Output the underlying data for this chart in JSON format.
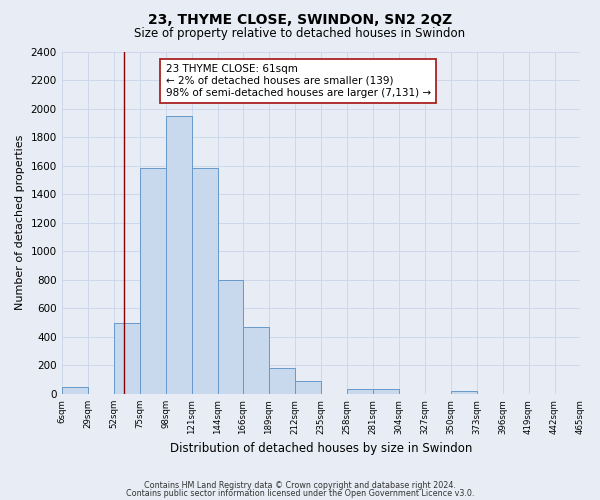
{
  "title": "23, THYME CLOSE, SWINDON, SN2 2QZ",
  "subtitle": "Size of property relative to detached houses in Swindon",
  "xlabel": "Distribution of detached houses by size in Swindon",
  "ylabel": "Number of detached properties",
  "bin_edges": [
    6,
    29,
    52,
    75,
    98,
    121,
    144,
    166,
    189,
    212,
    235,
    258,
    281,
    304,
    327,
    350,
    373,
    396,
    419,
    442,
    465
  ],
  "bar_heights": [
    50,
    0,
    500,
    1580,
    1950,
    1580,
    800,
    470,
    185,
    90,
    0,
    35,
    35,
    0,
    0,
    20,
    0,
    0,
    0,
    0
  ],
  "tick_labels": [
    "6sqm",
    "29sqm",
    "52sqm",
    "75sqm",
    "98sqm",
    "121sqm",
    "144sqm",
    "166sqm",
    "189sqm",
    "212sqm",
    "235sqm",
    "258sqm",
    "281sqm",
    "304sqm",
    "327sqm",
    "350sqm",
    "373sqm",
    "396sqm",
    "419sqm",
    "442sqm",
    "465sqm"
  ],
  "ylim": [
    0,
    2400
  ],
  "yticks": [
    0,
    200,
    400,
    600,
    800,
    1000,
    1200,
    1400,
    1600,
    1800,
    2000,
    2200,
    2400
  ],
  "bar_color": "#c8d9ee",
  "bar_edge_color": "#6699cc",
  "vline_x": 61,
  "vline_color": "#8b0000",
  "annotation_line1": "23 THYME CLOSE: 61sqm",
  "annotation_line2": "← 2% of detached houses are smaller (139)",
  "annotation_line3": "98% of semi-detached houses are larger (7,131) →",
  "annotation_box_color": "#ffffff",
  "annotation_box_edge": "#aa2222",
  "grid_color": "#c8d4e8",
  "background_color": "#e8edf5",
  "footer_line1": "Contains HM Land Registry data © Crown copyright and database right 2024.",
  "footer_line2": "Contains public sector information licensed under the Open Government Licence v3.0."
}
